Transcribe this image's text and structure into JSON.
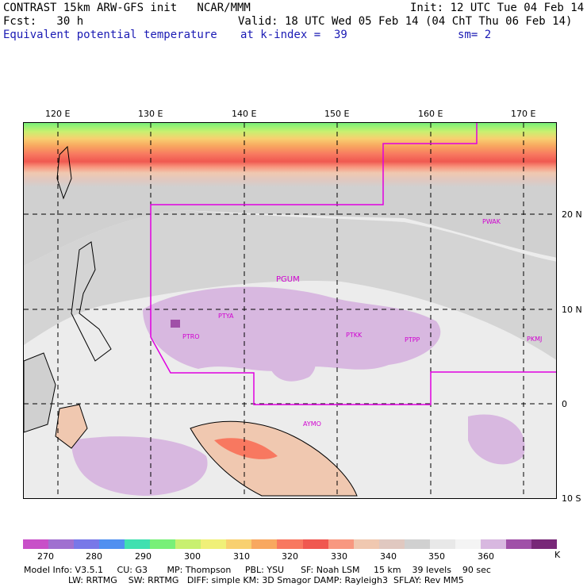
{
  "header": {
    "line1_left": "CONTRAST 15km ARW-GFS init   NCAR/MMM",
    "line1_right": "Init: 12 UTC Tue 04 Feb 14",
    "line2_left": "Fcst:   30 h",
    "line2_right": "Valid: 18 UTC Wed 05 Feb 14 (04 ChT Thu 06 Feb 14)",
    "line3_left": "Equivalent potential temperature",
    "line3_mid": "at k-index =  39",
    "line3_right": "sm= 2"
  },
  "axes": {
    "lon_labels": [
      "120 E",
      "130 E",
      "140 E",
      "150 E",
      "160 E",
      "170 E"
    ],
    "lat_labels": [
      "20 N",
      "10 N",
      "0",
      "10 S"
    ]
  },
  "stations": [
    "PGUM",
    "PTYA",
    "PTRO",
    "PTKK",
    "PTPP",
    "PKMJ",
    "PWAK",
    "AYMO"
  ],
  "colorbar": {
    "labels": [
      "270",
      "280",
      "290",
      "300",
      "310",
      "320",
      "330",
      "340",
      "350",
      "360"
    ],
    "unit": "K",
    "colors": [
      "#c850c8",
      "#a070d0",
      "#7878e8",
      "#5090f0",
      "#40e0b0",
      "#78f078",
      "#c8f070",
      "#f0f078",
      "#f8d070",
      "#f8a860",
      "#f87860",
      "#f05850",
      "#f89880",
      "#f0c8b0",
      "#e0c8c0",
      "#d0d0d0",
      "#e8e8e8",
      "#f4f4f4",
      "#d8b8e0",
      "#a050a8",
      "#782878"
    ]
  },
  "footer": {
    "line1": "Model Info: V3.5.1     CU: G3       MP: Thompson     PBL: YSU      SF: Noah LSM     15 km    39 levels    90 sec",
    "line2": "                LW: RRTMG    SW: RRTMG   DIFF: simple KM: 3D Smagor DAMP: Rayleigh3  SFLAY: Rev MM5"
  }
}
